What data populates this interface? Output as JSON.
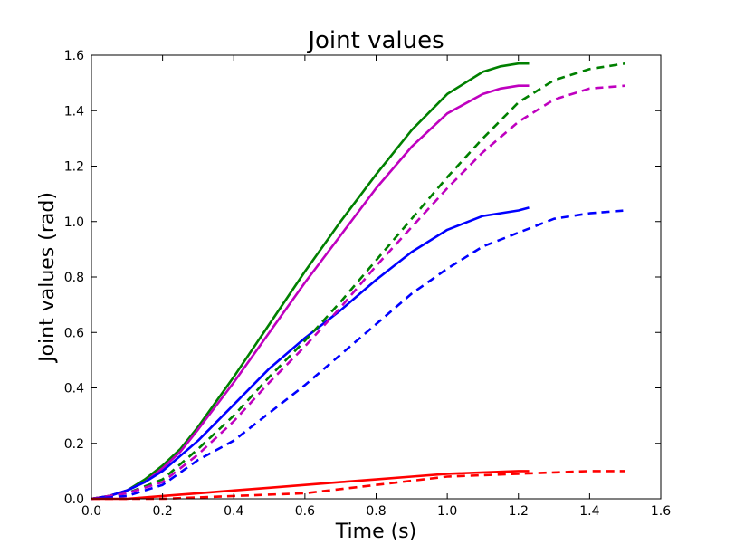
{
  "chart_data": {
    "type": "line",
    "title": "Joint values",
    "xlabel": "Time (s)",
    "ylabel": "Joint values (rad)",
    "xlim": [
      0.0,
      1.6
    ],
    "ylim": [
      0.0,
      1.6
    ],
    "xticks": [
      "0.0",
      "0.2",
      "0.4",
      "0.6",
      "0.8",
      "1.0",
      "1.2",
      "1.4",
      "1.6"
    ],
    "yticks": [
      "0.0",
      "0.2",
      "0.4",
      "0.6",
      "0.8",
      "1.0",
      "1.2",
      "1.4",
      "1.6"
    ],
    "grid": false,
    "legend": "none",
    "series": [
      {
        "color": "#008000",
        "style": "solid",
        "x": [
          0.0,
          0.05,
          0.1,
          0.15,
          0.2,
          0.25,
          0.3,
          0.4,
          0.5,
          0.6,
          0.7,
          0.8,
          0.9,
          1.0,
          1.1,
          1.15,
          1.2,
          1.23
        ],
        "y": [
          0.0,
          0.01,
          0.03,
          0.07,
          0.12,
          0.18,
          0.26,
          0.44,
          0.63,
          0.82,
          1.0,
          1.17,
          1.33,
          1.46,
          1.54,
          1.56,
          1.57,
          1.57
        ]
      },
      {
        "color": "#bf00bf",
        "style": "solid",
        "x": [
          0.0,
          0.05,
          0.1,
          0.15,
          0.2,
          0.25,
          0.3,
          0.4,
          0.5,
          0.6,
          0.7,
          0.8,
          0.9,
          1.0,
          1.1,
          1.15,
          1.2,
          1.23
        ],
        "y": [
          0.0,
          0.01,
          0.03,
          0.06,
          0.11,
          0.17,
          0.25,
          0.42,
          0.6,
          0.78,
          0.95,
          1.12,
          1.27,
          1.39,
          1.46,
          1.48,
          1.49,
          1.49
        ]
      },
      {
        "color": "#0000ff",
        "style": "solid",
        "x": [
          0.0,
          0.05,
          0.1,
          0.15,
          0.2,
          0.3,
          0.4,
          0.5,
          0.6,
          0.7,
          0.8,
          0.9,
          1.0,
          1.1,
          1.2,
          1.23
        ],
        "y": [
          0.0,
          0.01,
          0.03,
          0.06,
          0.1,
          0.21,
          0.34,
          0.47,
          0.58,
          0.68,
          0.79,
          0.89,
          0.97,
          1.02,
          1.04,
          1.05
        ]
      },
      {
        "color": "#ff0000",
        "style": "solid",
        "x": [
          0.0,
          0.1,
          0.2,
          0.3,
          0.4,
          0.5,
          0.6,
          0.7,
          0.8,
          0.9,
          1.0,
          1.1,
          1.2,
          1.23
        ],
        "y": [
          0.0,
          0.0,
          0.01,
          0.02,
          0.03,
          0.04,
          0.05,
          0.06,
          0.07,
          0.08,
          0.09,
          0.095,
          0.1,
          0.1
        ]
      },
      {
        "color": "#008000",
        "style": "dashed",
        "x": [
          0.0,
          0.1,
          0.2,
          0.3,
          0.4,
          0.5,
          0.6,
          0.7,
          0.8,
          0.9,
          1.0,
          1.1,
          1.2,
          1.3,
          1.4,
          1.5
        ],
        "y": [
          0.0,
          0.02,
          0.07,
          0.18,
          0.3,
          0.44,
          0.57,
          0.71,
          0.86,
          1.01,
          1.16,
          1.3,
          1.43,
          1.51,
          1.55,
          1.57
        ]
      },
      {
        "color": "#bf00bf",
        "style": "dashed",
        "x": [
          0.0,
          0.1,
          0.2,
          0.3,
          0.4,
          0.5,
          0.6,
          0.7,
          0.8,
          0.9,
          1.0,
          1.1,
          1.2,
          1.3,
          1.4,
          1.5
        ],
        "y": [
          0.0,
          0.02,
          0.06,
          0.16,
          0.28,
          0.42,
          0.55,
          0.69,
          0.84,
          0.98,
          1.12,
          1.25,
          1.36,
          1.44,
          1.48,
          1.49
        ]
      },
      {
        "color": "#0000ff",
        "style": "dashed",
        "x": [
          0.0,
          0.1,
          0.2,
          0.3,
          0.4,
          0.5,
          0.6,
          0.7,
          0.8,
          0.9,
          1.0,
          1.1,
          1.2,
          1.3,
          1.4,
          1.5
        ],
        "y": [
          0.0,
          0.01,
          0.05,
          0.14,
          0.21,
          0.31,
          0.41,
          0.52,
          0.63,
          0.74,
          0.83,
          0.91,
          0.96,
          1.01,
          1.03,
          1.04
        ]
      },
      {
        "color": "#ff0000",
        "style": "dashed",
        "x": [
          0.0,
          0.2,
          0.4,
          0.6,
          0.8,
          1.0,
          1.2,
          1.3,
          1.4,
          1.5
        ],
        "y": [
          0.0,
          0.0,
          0.01,
          0.02,
          0.05,
          0.08,
          0.09,
          0.095,
          0.1,
          0.1
        ]
      }
    ]
  }
}
